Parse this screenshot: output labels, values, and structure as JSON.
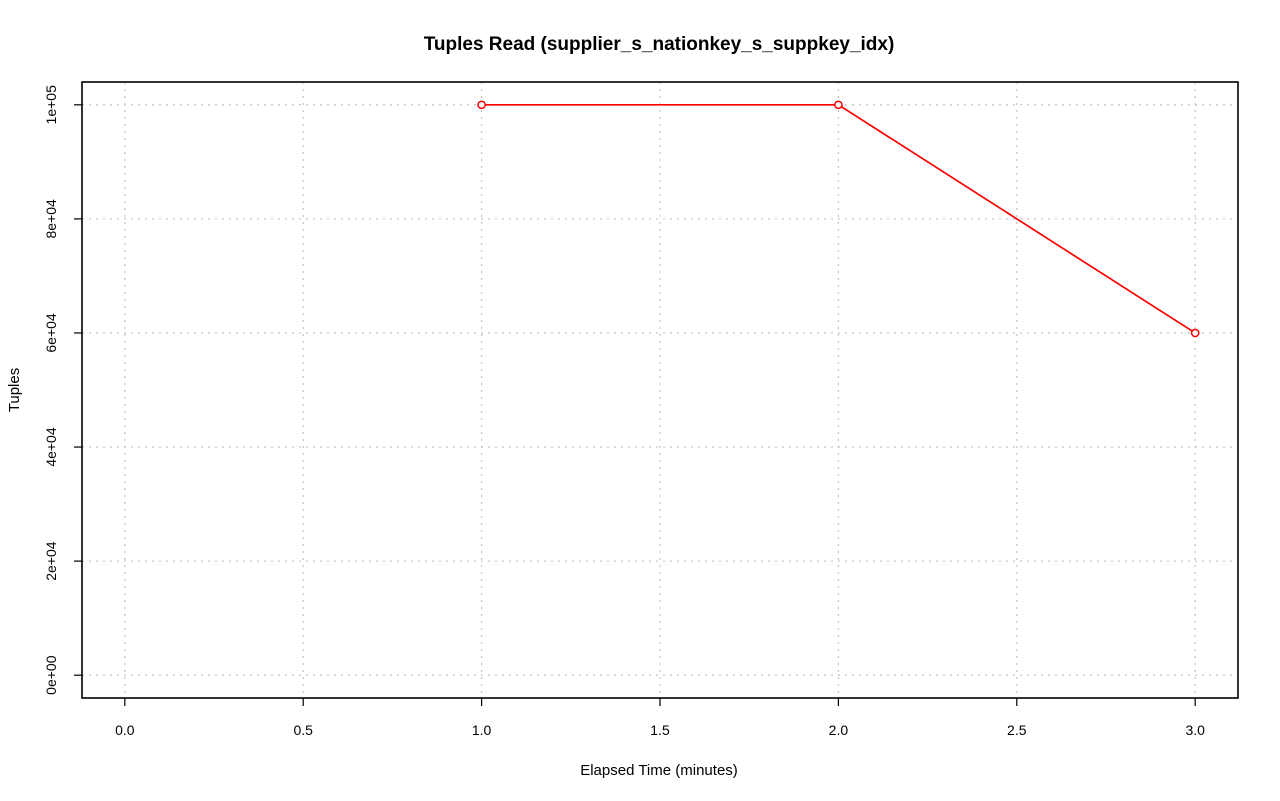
{
  "chart_data": {
    "type": "line",
    "title": "Tuples Read (supplier_s_nationkey_s_suppkey_idx)",
    "xlabel": "Elapsed Time (minutes)",
    "ylabel": "Tuples",
    "xlim": [
      -0.12,
      3.12
    ],
    "ylim": [
      -4000,
      104000
    ],
    "x_ticks": [
      0,
      0.5,
      1,
      1.5,
      2,
      2.5,
      3
    ],
    "x_tick_labels": [
      "0.0",
      "0.5",
      "1.0",
      "1.5",
      "2.0",
      "2.5",
      "3.0"
    ],
    "y_ticks": [
      0,
      20000,
      40000,
      60000,
      80000,
      100000
    ],
    "y_tick_labels": [
      "0e+00",
      "2e+04",
      "4e+04",
      "6e+04",
      "8e+04",
      "1e+05"
    ],
    "grid": true,
    "series": [
      {
        "color": "#ff0000",
        "x": [
          1,
          2,
          3
        ],
        "y": [
          100000,
          100000,
          60000
        ]
      }
    ]
  }
}
